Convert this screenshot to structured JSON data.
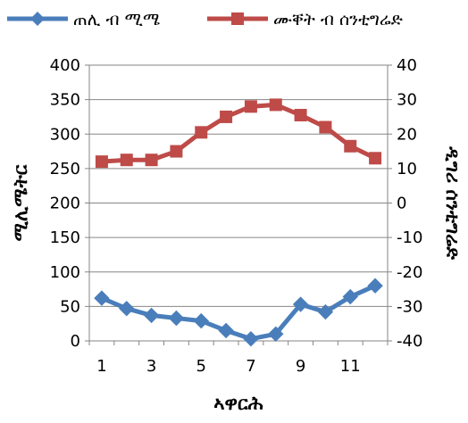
{
  "chart_data": {
    "type": "line",
    "x": [
      1,
      2,
      3,
      4,
      5,
      6,
      7,
      8,
      9,
      10,
      11,
      12
    ],
    "xticks": [
      "1",
      "3",
      "5",
      "7",
      "9",
      "11"
    ],
    "xtick_values": [
      1,
      3,
      5,
      7,
      9,
      11
    ],
    "xlabel": "ኣዋርሕ",
    "ylabel_left": "ሚሊሜትር",
    "ylabel_right": "ዲግሪ ሰንቲግሬድ",
    "ylim_left": [
      0,
      400
    ],
    "yticks_left": [
      "0",
      "50",
      "100",
      "150",
      "200",
      "250",
      "300",
      "350",
      "400"
    ],
    "ylim_right": [
      -40,
      40
    ],
    "yticks_right": [
      "-40",
      "-30",
      "-20",
      "-10",
      "0",
      "10",
      "20",
      "30",
      "40"
    ],
    "grid": "horizontal",
    "legend_position": "top",
    "series": [
      {
        "name": "ጠሊ ብ ሚሜ",
        "axis": "left",
        "color": "#4a7ebb",
        "marker": "diamond",
        "values": [
          62,
          47,
          37,
          33,
          29,
          15,
          3,
          10,
          53,
          42,
          64,
          80
        ]
      },
      {
        "name": "ሙቐት ብ ሰንቲግሬድ",
        "axis": "right",
        "color": "#be4b48",
        "marker": "square",
        "values": [
          12,
          12.5,
          12.5,
          15,
          20.5,
          25,
          28,
          28.5,
          25.5,
          22,
          16.5,
          13
        ]
      }
    ]
  }
}
